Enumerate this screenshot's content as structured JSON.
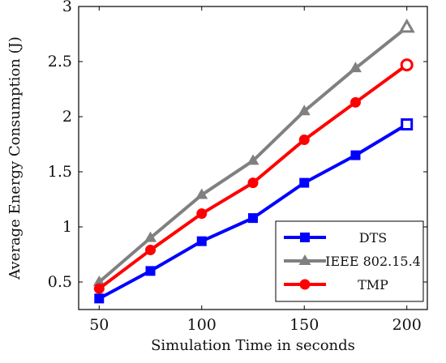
{
  "chart_data": {
    "type": "line",
    "title": "",
    "xlabel": "Simulation Time in seconds",
    "ylabel": "Average Energy Consumption (J)",
    "x": [
      50,
      75,
      100,
      125,
      150,
      175,
      200
    ],
    "xlim": [
      40,
      210
    ],
    "ylim": [
      0.25,
      3.0
    ],
    "xticks": [
      50,
      100,
      150,
      200
    ],
    "yticks": [
      0.5,
      1,
      1.5,
      2,
      2.5,
      3
    ],
    "xtick_labels": [
      "50",
      "100",
      "150",
      "200"
    ],
    "ytick_labels": [
      "0.5",
      "1",
      "1.5",
      "2",
      "2.5",
      "3"
    ],
    "grid": false,
    "legend_position": "bottom-right",
    "series": [
      {
        "name": "DTS",
        "color": "#0000ff",
        "marker": "square",
        "values": [
          0.35,
          0.6,
          0.87,
          1.08,
          1.4,
          1.65,
          1.93
        ]
      },
      {
        "name": "IEEE 802.15.4",
        "color": "#808080",
        "marker": "triangle",
        "values": [
          0.5,
          0.9,
          1.29,
          1.6,
          2.05,
          2.44,
          2.81
        ]
      },
      {
        "name": "TMP",
        "color": "#ff0000",
        "marker": "circle",
        "values": [
          0.44,
          0.79,
          1.12,
          1.4,
          1.79,
          2.13,
          2.47
        ]
      }
    ]
  }
}
